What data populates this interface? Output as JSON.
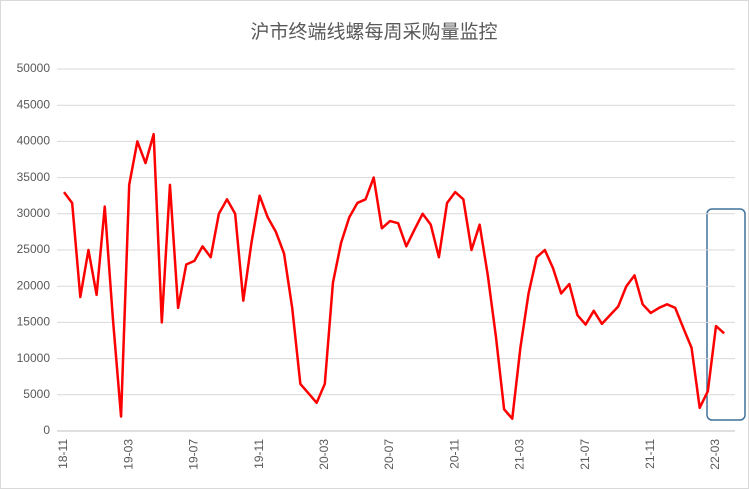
{
  "chart_data": {
    "type": "line",
    "title": "沪市终端线螺每周采购量监控",
    "categories": [
      "18-11",
      null,
      null,
      null,
      null,
      null,
      null,
      null,
      "19-03",
      null,
      null,
      null,
      null,
      null,
      null,
      null,
      "19-07",
      null,
      null,
      null,
      null,
      null,
      null,
      null,
      "19-11",
      null,
      null,
      null,
      null,
      null,
      null,
      null,
      "20-03",
      null,
      null,
      null,
      null,
      null,
      null,
      null,
      "20-07",
      null,
      null,
      null,
      null,
      null,
      null,
      null,
      "20-11",
      null,
      null,
      null,
      null,
      null,
      null,
      null,
      "21-03",
      null,
      null,
      null,
      null,
      null,
      null,
      null,
      "21-07",
      null,
      null,
      null,
      null,
      null,
      null,
      null,
      "21-11",
      null,
      null,
      null,
      null,
      null,
      null,
      null,
      "22-03",
      null
    ],
    "series": [
      {
        "name": "沪市终端线螺每周采购量",
        "color": "#ff0000",
        "values": [
          33000,
          31500,
          18500,
          25000,
          18800,
          31000,
          15500,
          2000,
          34000,
          40000,
          37000,
          41000,
          15000,
          34000,
          17000,
          23000,
          23500,
          25500,
          24000,
          30000,
          32000,
          30000,
          18000,
          26000,
          32500,
          29500,
          27500,
          24500,
          17000,
          6500,
          5200,
          3900,
          6500,
          20500,
          26000,
          29500,
          31500,
          32000,
          35000,
          28000,
          29000,
          28700,
          25500,
          27800,
          30000,
          28500,
          24000,
          31500,
          33000,
          32000,
          25000,
          28500,
          21500,
          13000,
          3000,
          1700,
          11500,
          19000,
          24000,
          25000,
          22500,
          19000,
          20300,
          16000,
          14700,
          16600,
          14800,
          16000,
          17200,
          20000,
          21500,
          17500,
          16300,
          17000,
          17500,
          17000,
          14200,
          11500,
          3200,
          5500,
          14500,
          13500
        ]
      }
    ],
    "ylim": [
      0,
      50000
    ],
    "yticks": [
      0,
      5000,
      10000,
      15000,
      20000,
      25000,
      30000,
      35000,
      40000,
      45000,
      50000
    ],
    "grid": true
  }
}
